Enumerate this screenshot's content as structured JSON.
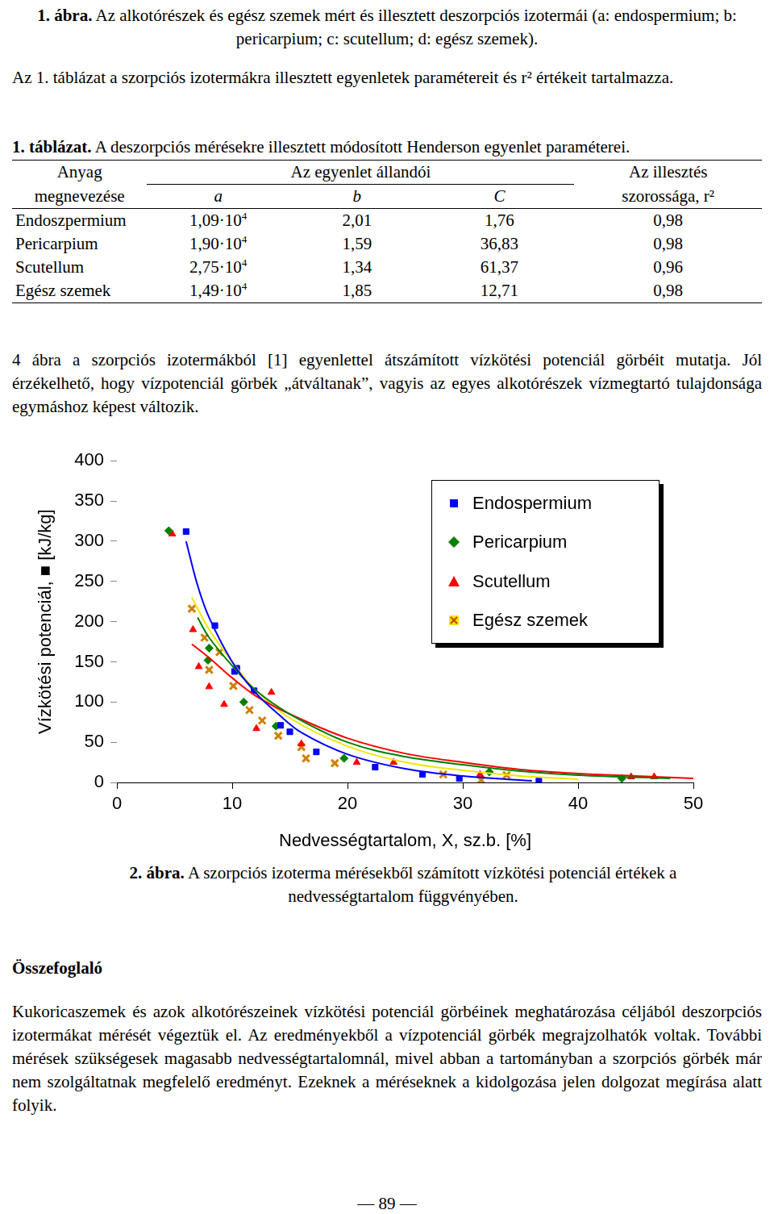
{
  "page": {
    "figure1_caption": {
      "label": "1. ábra.",
      "text": "Az alkotórészek és egész szemek mért és illesztett deszorpciós izotermái (a: endospermium; b: pericarpium; c: scutellum; d: egész szemek)."
    },
    "intro": "Az 1. táblázat a szorpciós izotermákra illesztett egyenletek paramétereit és r² értékeit tartalmazza.",
    "table": {
      "label": "1. táblázat.",
      "title": "A deszorpciós mérésekre illesztett módosított Henderson egyenlet paraméterei.",
      "header": {
        "material": [
          "Anyag",
          "megnevezése"
        ],
        "constants": "Az egyenlet állandói",
        "columns": [
          "a",
          "b",
          "C"
        ],
        "fit": [
          "Az illesztés",
          "szorossága, r²"
        ]
      },
      "rows": [
        [
          "Endoszpermium",
          {
            "base": "1,09·10",
            "exp": "4"
          },
          "2,01",
          "1,76",
          "0,98"
        ],
        [
          "Pericarpium",
          {
            "base": "1,90·10",
            "exp": "4"
          },
          "1,59",
          "36,83",
          "0,98"
        ],
        [
          "Scutellum",
          {
            "base": "2,75·10",
            "exp": "4"
          },
          "1,34",
          "61,37",
          "0,96"
        ],
        [
          "Egész szemek",
          {
            "base": "1,49·10",
            "exp": "4"
          },
          "1,85",
          "12,71",
          "0,98"
        ]
      ]
    },
    "paragraph": "4 ábra a szorpciós izotermákból [1] egyenlettel átszámított vízkötési potenciál görbéit mutatja. Jól érzékelhető, hogy vízpotenciál görbék „átváltanak”, vagyis az egyes alkotórészek vízmegtartó tulajdonsága egymáshoz képest változik.",
    "figure2_caption": {
      "label": "2. ábra.",
      "text": "A szorpciós izoterma mérésekből számított vízkötési potenciál értékek a nedvességtartalom függvényében."
    },
    "summary_title": "Összefoglaló",
    "summary": "Kukoricaszemek és azok alkotórészeinek vízkötési potenciál görbéinek meghatározása céljából deszorpciós izotermákat mérését végeztük el. Az eredményekből a vízpotenciál görbék megrajzolhatók voltak. További mérések szükségesek magasabb nedvességtartalomnál, mivel abban a tartományban a szorpciós görbék már nem szolgáltatnak megfelelő eredményt. Ezeknek a méréseknek a kidolgozása jelen dolgozat megírása alatt folyik.",
    "page_number": "— 89 —"
  },
  "chart_data": {
    "type": "scatter",
    "x_label": "Nedvességtartalom, X, sz.b. [%]",
    "y_label": "Vízkötési potenciál, ■ [kJ/kg]",
    "xlim": [
      0,
      50
    ],
    "xticks": [
      0,
      10,
      20,
      30,
      40,
      50
    ],
    "ylim": [
      0,
      400
    ],
    "yticks": [
      0,
      50,
      100,
      150,
      200,
      250,
      300,
      350,
      400
    ],
    "grid": false,
    "legend": "upper right",
    "series": [
      {
        "name": "Endospermium",
        "color": "#0000ff",
        "marker": "square",
        "x": [
          6.0,
          8.5,
          10.2,
          10.4,
          11.9,
          14.2,
          15.0,
          17.3,
          22.4,
          26.5,
          29.7,
          36.6
        ],
        "values": [
          312,
          195,
          138,
          142,
          114,
          71,
          63,
          38,
          19,
          10,
          5,
          2
        ],
        "fit": {
          "x": [
            6,
            7,
            8,
            10,
            12,
            14,
            16,
            20,
            25,
            30,
            36
          ],
          "values": [
            300,
            245,
            205,
            150,
            112,
            85,
            62,
            35,
            17,
            8,
            2
          ]
        }
      },
      {
        "name": "Pericarpium",
        "color": "#008000",
        "marker": "diamond",
        "x": [
          4.5,
          8.0,
          7.9,
          11.0,
          13.8,
          19.7,
          32.3,
          43.8
        ],
        "values": [
          313,
          167,
          152,
          100,
          70,
          30,
          13,
          5
        ],
        "fit": {
          "x": [
            7,
            8,
            10,
            12,
            15,
            20,
            25,
            30,
            35,
            40,
            48
          ],
          "values": [
            205,
            180,
            145,
            115,
            85,
            50,
            32,
            22,
            14,
            9,
            5
          ]
        }
      },
      {
        "name": "Scutellum",
        "color": "#ff0000",
        "marker": "triangle",
        "x": [
          4.8,
          6.6,
          7.1,
          8.0,
          9.3,
          13.4,
          12.1,
          16.0,
          20.8,
          24.0,
          31.5,
          44.6,
          46.6
        ],
        "values": [
          309,
          190,
          144,
          119,
          97,
          112,
          67,
          48,
          25,
          25,
          10,
          7,
          7
        ],
        "fit": {
          "x": [
            6.5,
            8,
            10,
            12,
            15,
            20,
            25,
            30,
            35,
            40,
            45,
            50
          ],
          "values": [
            172,
            155,
            130,
            108,
            85,
            55,
            36,
            25,
            16,
            11,
            8,
            5
          ]
        }
      },
      {
        "name": "Egész szemek",
        "color": "#f2e600",
        "marker": "cross",
        "x": [
          6.5,
          7.6,
          8.9,
          8.0,
          10.1,
          11.5,
          12.6,
          14.0,
          16.0,
          16.4,
          18.9,
          28.3,
          31.6,
          33.8
        ],
        "values": [
          216,
          180,
          162,
          140,
          120,
          90,
          77,
          58,
          44,
          30,
          24,
          10,
          3,
          9
        ],
        "fit": {
          "x": [
            6.5,
            8,
            10,
            12,
            15,
            20,
            25,
            30,
            35,
            40
          ],
          "values": [
            230,
            190,
            150,
            115,
            80,
            45,
            25,
            15,
            8,
            4
          ]
        }
      }
    ]
  }
}
